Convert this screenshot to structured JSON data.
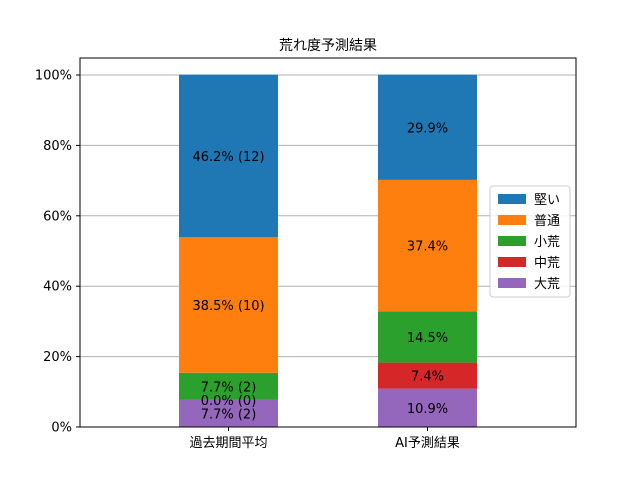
{
  "chart_data": {
    "type": "bar",
    "stacked": true,
    "title": "荒れ度予測結果",
    "xlabel": "",
    "ylabel": "",
    "categories": [
      "過去期間平均",
      "AI予測結果"
    ],
    "ylim": [
      0,
      100
    ],
    "yticks": [
      "0%",
      "20%",
      "40%",
      "60%",
      "80%",
      "100%"
    ],
    "grid": "horizontal",
    "legend_position": "right",
    "series": [
      {
        "name": "大荒",
        "color": "#9467bd",
        "values": [
          7.7,
          10.9
        ],
        "labels": [
          "7.7% (2)",
          "10.9%"
        ]
      },
      {
        "name": "中荒",
        "color": "#d62728",
        "values": [
          0.0,
          7.4
        ],
        "labels": [
          "0.0% (0)",
          "7.4%"
        ]
      },
      {
        "name": "小荒",
        "color": "#2ca02c",
        "values": [
          7.7,
          14.5
        ],
        "labels": [
          "7.7% (2)",
          "14.5%"
        ]
      },
      {
        "name": "普通",
        "color": "#ff7f0e",
        "values": [
          38.5,
          37.4
        ],
        "labels": [
          "38.5% (10)",
          "37.4%"
        ]
      },
      {
        "name": "堅い",
        "color": "#1f77b4",
        "values": [
          46.2,
          29.9
        ],
        "labels": [
          "46.2% (12)",
          "29.9%"
        ]
      }
    ],
    "legend_order": [
      "堅い",
      "普通",
      "小荒",
      "中荒",
      "大荒"
    ]
  }
}
